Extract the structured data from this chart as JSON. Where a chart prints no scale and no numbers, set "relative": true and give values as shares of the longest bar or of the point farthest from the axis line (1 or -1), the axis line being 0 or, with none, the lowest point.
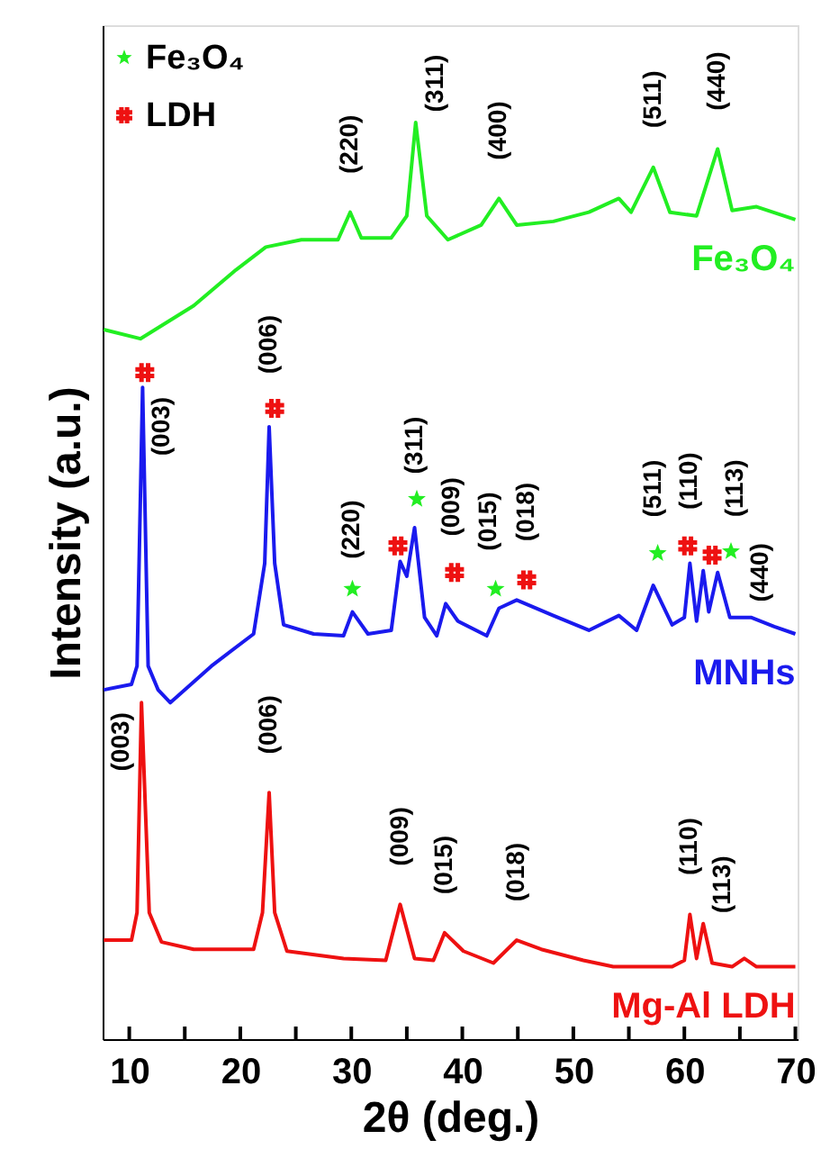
{
  "chart_data": {
    "type": "line",
    "relative": true,
    "xlabel": "2θ (deg.)",
    "ylabel": "Intensity (a.u.)",
    "xlim": [
      7.6,
      70.2
    ],
    "xticks": [
      10,
      {
        "value": 15,
        "label": null
      },
      20,
      {
        "value": 25,
        "label": null
      },
      30,
      {
        "value": 35,
        "label": null
      },
      40,
      {
        "value": 45,
        "label": null
      },
      50,
      {
        "value": 55,
        "label": null
      },
      60,
      {
        "value": 65,
        "label": null
      },
      70
    ],
    "grid": false,
    "legend": "top left",
    "line_style": "solid",
    "series": [
      {
        "name": "Fe₃O₄",
        "color": "#22ee22",
        "x": [
          7.7,
          11.0,
          15.8,
          19.6,
          22.3,
          25.5,
          28.8,
          29.9,
          30.9,
          33.6,
          35.0,
          35.8,
          36.8,
          38.7,
          41.7,
          43.3,
          44.9,
          48.2,
          51.4,
          54.1,
          55.2,
          57.2,
          58.7,
          61.1,
          63.0,
          64.3,
          66.5,
          70.0
        ],
        "values": [
          0.774,
          0.764,
          0.8,
          0.839,
          0.864,
          0.872,
          0.872,
          0.902,
          0.874,
          0.874,
          0.898,
          1.0,
          0.898,
          0.872,
          0.888,
          0.917,
          0.888,
          0.892,
          0.902,
          0.917,
          0.902,
          0.951,
          0.902,
          0.898,
          0.971,
          0.904,
          0.908,
          0.894
        ]
      },
      {
        "name": "MNHs",
        "color": "#1a1aee",
        "x": [
          7.7,
          10.2,
          10.7,
          11.2,
          11.7,
          12.6,
          13.7,
          17.4,
          21.2,
          22.2,
          22.6,
          23.1,
          23.9,
          26.6,
          29.3,
          30.1,
          31.5,
          33.6,
          34.4,
          35.0,
          35.7,
          36.6,
          37.7,
          38.5,
          39.6,
          42.2,
          43.3,
          44.9,
          48.2,
          51.4,
          54.1,
          55.7,
          57.2,
          58.9,
          60.0,
          60.5,
          61.1,
          61.7,
          62.2,
          63.0,
          64.1,
          66.0,
          68.1,
          70.0
        ],
        "values": [
          0.381,
          0.387,
          0.407,
          0.711,
          0.407,
          0.381,
          0.367,
          0.407,
          0.442,
          0.519,
          0.668,
          0.519,
          0.452,
          0.442,
          0.44,
          0.466,
          0.442,
          0.446,
          0.521,
          0.505,
          0.558,
          0.46,
          0.44,
          0.475,
          0.456,
          0.44,
          0.47,
          0.479,
          0.462,
          0.446,
          0.462,
          0.446,
          0.495,
          0.452,
          0.46,
          0.519,
          0.456,
          0.511,
          0.466,
          0.509,
          0.46,
          0.46,
          0.45,
          0.442
        ]
      },
      {
        "name": "Mg-Al LDH",
        "color": "#ee1111",
        "x": [
          7.7,
          10.2,
          10.7,
          11.1,
          11.8,
          12.9,
          15.8,
          21.2,
          22.0,
          22.6,
          23.1,
          24.2,
          29.3,
          33.1,
          34.4,
          35.7,
          37.4,
          38.4,
          40.1,
          42.8,
          44.9,
          47.1,
          50.9,
          53.6,
          58.9,
          60.0,
          60.5,
          61.1,
          61.7,
          62.5,
          64.3,
          65.4,
          66.5,
          70.0
        ],
        "values": [
          0.108,
          0.108,
          0.138,
          0.367,
          0.138,
          0.106,
          0.098,
          0.098,
          0.138,
          0.269,
          0.138,
          0.096,
          0.088,
          0.086,
          0.147,
          0.088,
          0.086,
          0.116,
          0.096,
          0.083,
          0.108,
          0.098,
          0.086,
          0.079,
          0.079,
          0.086,
          0.136,
          0.088,
          0.126,
          0.083,
          0.079,
          0.088,
          0.079,
          0.079
        ]
      },
      {
        "name": "Fe₃O₄",
        "type": "scatter",
        "marker": "star",
        "color": "#22ee22",
        "x": [
          30.1,
          35.9,
          43.0,
          57.6,
          64.2
        ],
        "values": [
          0.491,
          0.589,
          0.491,
          0.53,
          0.532
        ]
      },
      {
        "name": "LDH",
        "type": "scatter",
        "marker": "cross",
        "color": "#ee1111",
        "x": [
          11.4,
          23.1,
          34.2,
          39.3,
          45.8,
          60.3,
          62.5
        ],
        "values": [
          0.727,
          0.688,
          0.538,
          0.509,
          0.501,
          0.538,
          0.528
        ]
      }
    ],
    "annotations": [
      {
        "text": "(220)",
        "x": 29.9,
        "y": 0.902
      },
      {
        "text": "(311)",
        "x": 35.8,
        "y": 1.0
      },
      {
        "text": "(400)",
        "x": 43.3,
        "y": 0.917
      },
      {
        "text": "(511)",
        "x": 57.2,
        "y": 0.951
      },
      {
        "text": "(440)",
        "x": 63.0,
        "y": 0.971
      },
      {
        "text": "(003)",
        "x": 11.2,
        "y": 0.711
      },
      {
        "text": "(006)",
        "x": 22.6,
        "y": 0.668
      },
      {
        "text": "(220)",
        "x": 30.1,
        "y": 0.466
      },
      {
        "text": "(009)",
        "x": 34.2,
        "y": 0.538
      },
      {
        "text": "(311)",
        "x": 35.7,
        "y": 0.558
      },
      {
        "text": "(015)",
        "x": 38.5,
        "y": 0.475
      },
      {
        "text": "(018)",
        "x": 45.8,
        "y": 0.501
      },
      {
        "text": "(511)",
        "x": 57.2,
        "y": 0.495
      },
      {
        "text": "(110)",
        "x": 60.5,
        "y": 0.519
      },
      {
        "text": "(113)",
        "x": 61.7,
        "y": 0.511
      },
      {
        "text": "(440)",
        "x": 63.0,
        "y": 0.509
      },
      {
        "text": "(003)",
        "x": 11.1,
        "y": 0.367
      },
      {
        "text": "(006)",
        "x": 22.6,
        "y": 0.269
      },
      {
        "text": "(009)",
        "x": 34.4,
        "y": 0.147
      },
      {
        "text": "(015)",
        "x": 38.4,
        "y": 0.116
      },
      {
        "text": "(018)",
        "x": 44.9,
        "y": 0.108
      },
      {
        "text": "(110)",
        "x": 60.5,
        "y": 0.136
      },
      {
        "text": "(113)",
        "x": 61.7,
        "y": 0.126
      }
    ]
  }
}
